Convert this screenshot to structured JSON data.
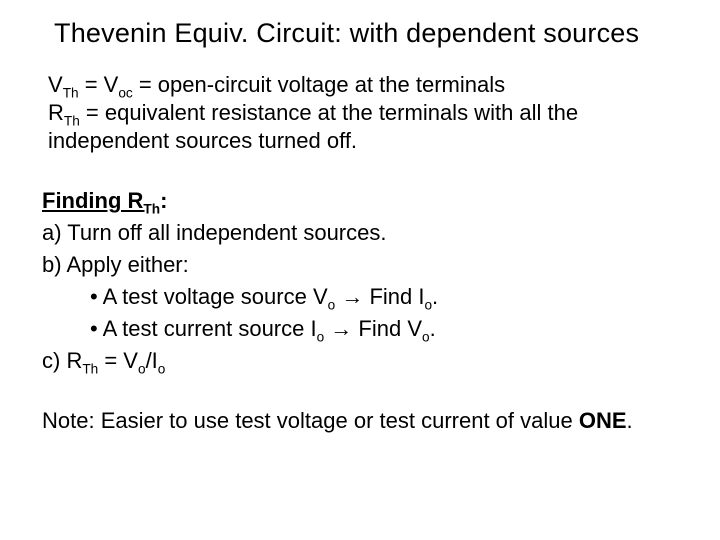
{
  "title": "Thevenin Equiv. Circuit:  with dependent sources",
  "def": {
    "vth_pre": "V",
    "vth_sub": "Th",
    "voc_pre": " = V",
    "voc_sub": "oc",
    "voc_rest": " = open-circuit voltage at the terminals",
    "rth_pre": "R",
    "rth_sub": "Th",
    "rth_rest": " = equivalent resistance at the terminals with all the independent sources turned off."
  },
  "finding": {
    "heading_pre": "Finding R",
    "heading_sub": "Th",
    "heading_post": ":",
    "a": "a) Turn off all independent sources.",
    "b": "b) Apply either:",
    "bullet1_pre": "•  A test voltage source V",
    "bullet1_sub1": "o",
    "bullet1_mid": " ",
    "bullet1_arrow": "→",
    "bullet1_mid2": " Find I",
    "bullet1_sub2": "o",
    "bullet1_end": ".",
    "bullet2_pre": "•  A test current source I",
    "bullet2_sub1": "o",
    "bullet2_mid": " ",
    "bullet2_arrow": "→",
    "bullet2_mid2": " Find V",
    "bullet2_sub2": "o",
    "bullet2_end": ".",
    "c_pre": "c) R",
    "c_sub1": "Th",
    "c_mid": " = V",
    "c_sub2": "o",
    "c_mid2": "/I",
    "c_sub3": "o"
  },
  "note": {
    "pre": "Note:  Easier to use test voltage or test current of value ",
    "one": "ONE",
    "end": "."
  }
}
